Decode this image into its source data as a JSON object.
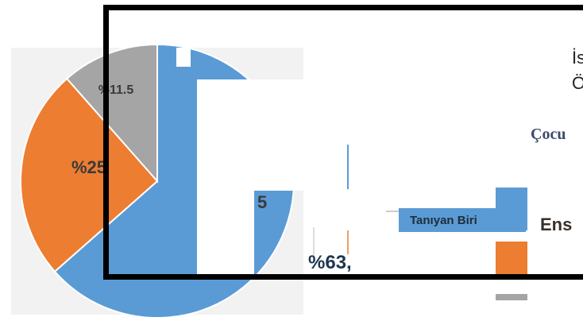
{
  "chart_data": {
    "type": "pie",
    "slices": [
      {
        "label": "%63,",
        "value": 63.5,
        "color": "#5b9bd5"
      },
      {
        "label": "%25",
        "value": 25,
        "color": "#ed7d31"
      },
      {
        "label": "%11.5",
        "value": 11.5,
        "color": "#a5a5a5"
      }
    ],
    "legend": [
      "Tanıyan Biri"
    ],
    "fragments": {
      "partial_digit": "5",
      "text_line_1": "İs",
      "text_line_2": "Ö",
      "serif_title": "Çocu",
      "heading_fragment": "Ens"
    }
  },
  "colors": {
    "blue": "#5b9bd5",
    "orange": "#ed7d31",
    "gray": "#a5a5a5"
  }
}
